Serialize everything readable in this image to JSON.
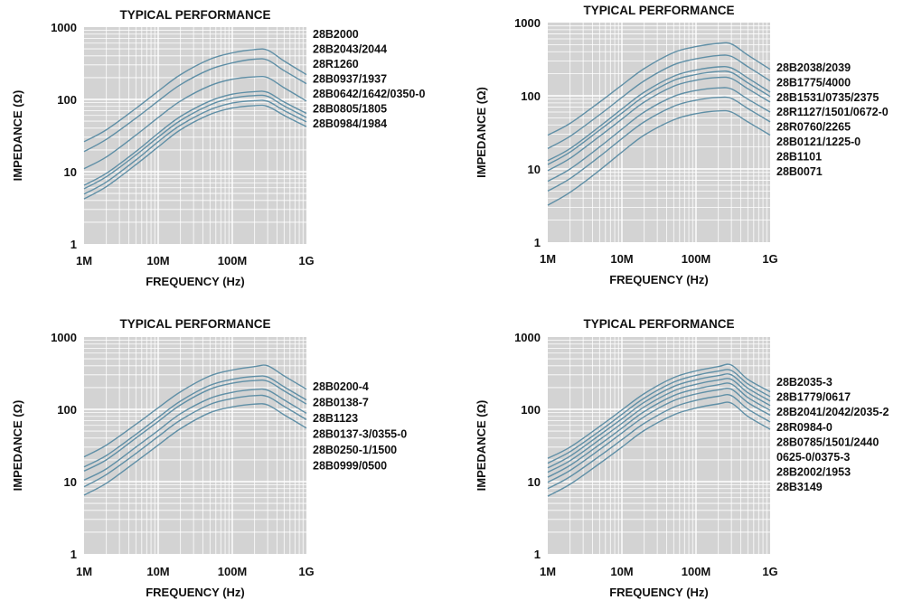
{
  "colors": {
    "plot_background": "#d3d3d3",
    "grid": "#ffffff",
    "curve": "#5f8fa6",
    "text": "#111111"
  },
  "chart_data": [
    {
      "type": "line",
      "title": "TYPICAL PERFORMANCE",
      "xlabel": "FREQUENCY (Hz)",
      "ylabel": "IMPEDANCE (Ω)",
      "x_scale": "log",
      "y_scale": "log",
      "xlim": [
        "1M",
        "1G"
      ],
      "ylim": [
        1,
        1000
      ],
      "x_ticks": [
        "1M",
        "10M",
        "100M",
        "1G"
      ],
      "y_ticks": [
        "1",
        "10",
        "100",
        "1000"
      ],
      "grid": true,
      "legend_placement": "right",
      "x": [
        "1M",
        "2M",
        "5M",
        "10M",
        "20M",
        "50M",
        "100M",
        "200M",
        "300M",
        "500M",
        "1G"
      ],
      "labels": [
        "28B2000",
        "28B2043/2044",
        "28R1260",
        "28B0937/1937",
        "28B0642/1642/0350-0",
        "28B0805/1805",
        "28B0984/1984"
      ],
      "series": [
        {
          "values": [
            26,
            38,
            75,
            130,
            220,
            360,
            440,
            490,
            480,
            340,
            220
          ]
        },
        {
          "values": [
            19,
            28,
            55,
            95,
            160,
            260,
            320,
            360,
            350,
            250,
            165
          ]
        },
        {
          "values": [
            11,
            16,
            32,
            56,
            95,
            155,
            190,
            205,
            200,
            145,
            95
          ]
        },
        {
          "values": [
            6.5,
            9.5,
            19,
            34,
            58,
            95,
            118,
            128,
            125,
            92,
            64
          ]
        },
        {
          "values": [
            5.8,
            8.5,
            17,
            30,
            51,
            84,
            104,
            113,
            110,
            81,
            56
          ]
        },
        {
          "values": [
            4.9,
            7.2,
            14.5,
            26,
            44,
            72,
            89,
            96,
            94,
            70,
            49
          ]
        },
        {
          "values": [
            4.2,
            6.2,
            12.5,
            22,
            38,
            62,
            76,
            82,
            80,
            60,
            42
          ]
        }
      ]
    },
    {
      "type": "line",
      "title": "TYPICAL PERFORMANCE",
      "xlabel": "FREQUENCY (Hz)",
      "ylabel": "IMPEDANCE (Ω)",
      "x_scale": "log",
      "y_scale": "log",
      "xlim": [
        "1M",
        "1G"
      ],
      "ylim": [
        1,
        1000
      ],
      "x_ticks": [
        "1M",
        "10M",
        "100M",
        "1G"
      ],
      "y_ticks": [
        "1",
        "10",
        "100",
        "1000"
      ],
      "grid": true,
      "legend_placement": "right",
      "x": [
        "1M",
        "2M",
        "5M",
        "10M",
        "20M",
        "50M",
        "100M",
        "200M",
        "300M",
        "500M",
        "1G"
      ],
      "labels": [
        "28B2038/2039",
        "28B1775/4000",
        "28B1531/0735/2375",
        "28R1127/1501/0672-0",
        "28R0760/2265",
        "28B0121/1225-0",
        "28B1101",
        "28B0071"
      ],
      "series": [
        {
          "values": [
            29,
            42,
            82,
            140,
            235,
            390,
            470,
            520,
            510,
            360,
            230
          ]
        },
        {
          "values": [
            19,
            28,
            55,
            95,
            160,
            265,
            320,
            355,
            345,
            250,
            160
          ]
        },
        {
          "values": [
            13,
            19,
            38,
            66,
            112,
            185,
            225,
            248,
            240,
            175,
            112
          ]
        },
        {
          "values": [
            11.5,
            17,
            34,
            58,
            98,
            162,
            195,
            215,
            208,
            150,
            98
          ]
        },
        {
          "values": [
            9.5,
            14,
            28,
            48,
            82,
            135,
            163,
            178,
            172,
            125,
            82
          ]
        },
        {
          "values": [
            6.8,
            10,
            20,
            35,
            60,
            98,
            118,
            128,
            124,
            90,
            60
          ]
        },
        {
          "values": [
            5,
            7.4,
            14.8,
            26,
            44,
            72,
            87,
            95,
            92,
            67,
            44
          ]
        },
        {
          "values": [
            3.2,
            4.8,
            9.6,
            17,
            29,
            47,
            57,
            62,
            60,
            44,
            29
          ]
        }
      ]
    },
    {
      "type": "line",
      "title": "TYPICAL PERFORMANCE",
      "xlabel": "FREQUENCY (Hz)",
      "ylabel": "IMPEDANCE (Ω)",
      "x_scale": "log",
      "y_scale": "log",
      "xlim": [
        "1M",
        "1G"
      ],
      "ylim": [
        1,
        1000
      ],
      "x_ticks": [
        "1M",
        "10M",
        "100M",
        "1G"
      ],
      "y_ticks": [
        "1",
        "10",
        "100",
        "1000"
      ],
      "grid": true,
      "legend_placement": "right",
      "x": [
        "1M",
        "2M",
        "5M",
        "10M",
        "20M",
        "50M",
        "100M",
        "200M",
        "300M",
        "500M",
        "1G"
      ],
      "labels": [
        "28B0200-4",
        "28B0138-7",
        "28B1123",
        "28B0137-3/0355-0",
        "28B0250-1/1500",
        "28B0999/0500"
      ],
      "series": [
        {
          "values": [
            22,
            32,
            62,
            105,
            175,
            290,
            350,
            390,
            400,
            290,
            190
          ]
        },
        {
          "values": [
            16,
            23,
            45,
            77,
            130,
            215,
            260,
            285,
            280,
            205,
            135
          ]
        },
        {
          "values": [
            14,
            20,
            40,
            68,
            115,
            190,
            230,
            250,
            245,
            180,
            118
          ]
        },
        {
          "values": [
            10.5,
            15,
            30,
            51,
            87,
            142,
            172,
            188,
            184,
            135,
            88
          ]
        },
        {
          "values": [
            8.5,
            12.5,
            24.5,
            42,
            71,
            117,
            141,
            155,
            150,
            110,
            72
          ]
        },
        {
          "values": [
            6.5,
            9.5,
            18.8,
            32,
            54,
            90,
            108,
            118,
            115,
            84,
            55
          ]
        }
      ]
    },
    {
      "type": "line",
      "title": "TYPICAL PERFORMANCE",
      "xlabel": "FREQUENCY (Hz)",
      "ylabel": "IMPEDANCE (Ω)",
      "x_scale": "log",
      "y_scale": "log",
      "xlim": [
        "1M",
        "1G"
      ],
      "ylim": [
        1,
        1000
      ],
      "x_ticks": [
        "1M",
        "10M",
        "100M",
        "1G"
      ],
      "y_ticks": [
        "1",
        "10",
        "100",
        "1000"
      ],
      "grid": true,
      "legend_placement": "right",
      "x": [
        "1M",
        "2M",
        "5M",
        "10M",
        "20M",
        "50M",
        "100M",
        "200M",
        "300M",
        "500M",
        "1G"
      ],
      "labels": [
        "28B2035-3",
        "28B1779/0617",
        "28B2041/2042/2035-2",
        "28R0984-0",
        "28B0785/1501/2440",
        "0625-0/0375-3",
        "28B2002/1953",
        "28B3149"
      ],
      "series": [
        {
          "values": [
            21,
            30,
            58,
            98,
            165,
            275,
            340,
            390,
            410,
            260,
            175
          ]
        },
        {
          "values": [
            18,
            26,
            50,
            85,
            143,
            238,
            295,
            338,
            345,
            225,
            150
          ]
        },
        {
          "values": [
            15.5,
            22.5,
            44,
            74,
            125,
            207,
            256,
            293,
            300,
            196,
            130
          ]
        },
        {
          "values": [
            13.5,
            19.5,
            38,
            64,
            108,
            180,
            222,
            254,
            260,
            170,
            113
          ]
        },
        {
          "values": [
            11.5,
            16.8,
            32.5,
            55,
            93,
            155,
            191,
            219,
            224,
            146,
            97
          ]
        },
        {
          "values": [
            9.8,
            14.3,
            27.7,
            47,
            79,
            132,
            163,
            186,
            190,
            124,
            83
          ]
        },
        {
          "values": [
            8,
            11.7,
            22.6,
            38,
            64,
            107,
            133,
            152,
            155,
            101,
            67
          ]
        },
        {
          "values": [
            6.3,
            9.2,
            17.8,
            30,
            51,
            84,
            104,
            119,
            122,
            80,
            53
          ]
        }
      ]
    }
  ]
}
